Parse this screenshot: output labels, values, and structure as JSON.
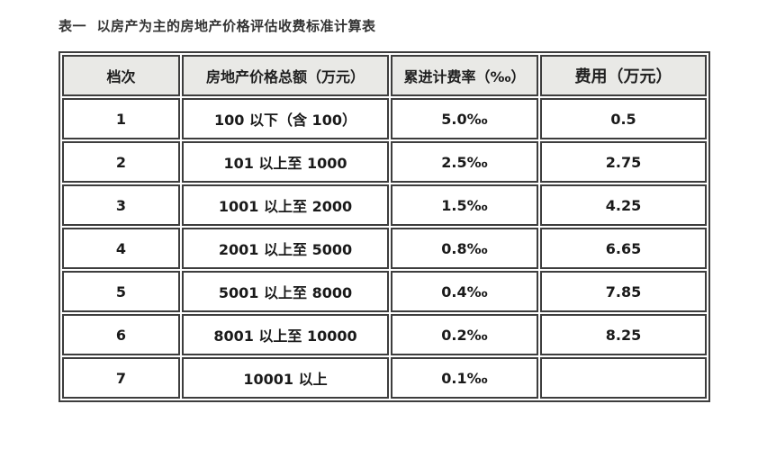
{
  "title": "表一  以房产为主的房地产价格评估收费标准计算表",
  "table": {
    "headers": [
      {
        "label": "档次"
      },
      {
        "label": "房地产价格总额（万元）"
      },
      {
        "label": "累进计费率（‰）"
      },
      {
        "label": "费用（万元）"
      }
    ],
    "rows": [
      {
        "grade": "1",
        "price_range": "100 以下（含 100）",
        "rate": "5.0‰",
        "fee": "0.5"
      },
      {
        "grade": "2",
        "price_range": "101 以上至 1000",
        "rate": "2.5‰",
        "fee": "2.75"
      },
      {
        "grade": "3",
        "price_range": "1001 以上至 2000",
        "rate": "1.5‰",
        "fee": "4.25"
      },
      {
        "grade": "4",
        "price_range": "2001 以上至 5000",
        "rate": "0.8‰",
        "fee": "6.65"
      },
      {
        "grade": "5",
        "price_range": "5001 以上至 8000",
        "rate": "0.4‰",
        "fee": "7.85"
      },
      {
        "grade": "6",
        "price_range": "8001 以上至 10000",
        "rate": "0.2‰",
        "fee": "8.25"
      },
      {
        "grade": "7",
        "price_range": "10001 以上",
        "rate": "0.1‰",
        "fee": ""
      }
    ]
  },
  "colors": {
    "border": "#3d3d3d",
    "header_bg": "#e9e9e6",
    "text": "#1a1a1a",
    "title_text": "#333333",
    "page_bg": "#ffffff"
  }
}
